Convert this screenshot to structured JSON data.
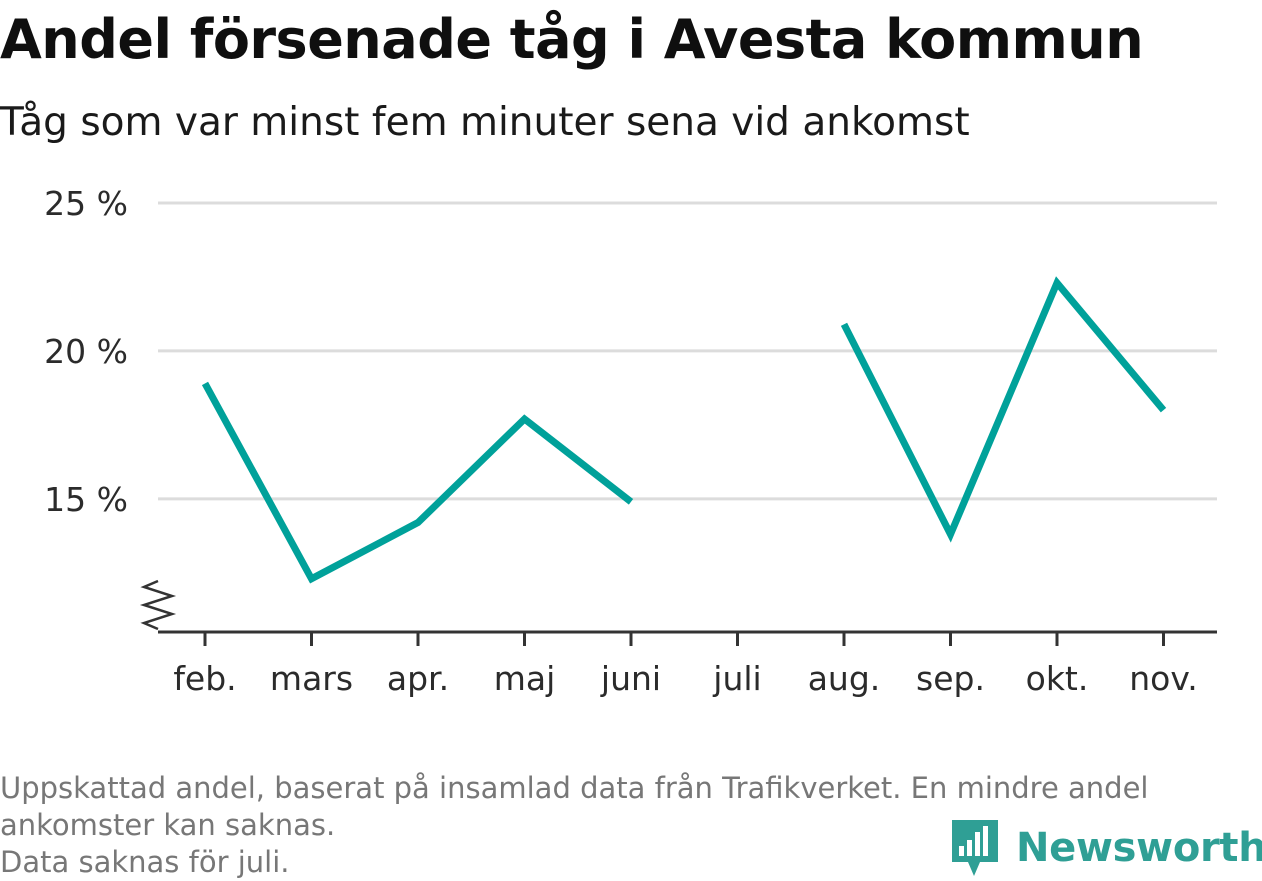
{
  "chart_data": {
    "type": "line",
    "title": "Andel försenade tåg i Avesta kommun",
    "subtitle": "Tåg som var minst fem minuter sena vid ankomst",
    "categories": [
      "feb.",
      "mars",
      "apr.",
      "maj",
      "juni",
      "juli",
      "aug.",
      "sep.",
      "okt.",
      "nov."
    ],
    "series": [
      {
        "values": [
          18.9,
          12.3,
          14.2,
          17.7,
          14.9,
          null,
          20.9,
          13.8,
          22.3,
          18.0
        ]
      }
    ],
    "y_ticks": [
      15,
      20,
      25
    ],
    "y_tick_labels": [
      "15 %",
      "20 %",
      "25 %"
    ],
    "ylim": [
      10.5,
      25
    ],
    "y_axis_break": true,
    "grid": true,
    "line_color": "#00a19a"
  },
  "footnote": {
    "line1": "Uppskattad andel, baserat på insamlad data från Trafikverket. En mindre andel",
    "line2": "ankomster kan saknas.",
    "line3": "Data saknas för juli."
  },
  "brand": {
    "name": "Newsworthy",
    "icon": "bar-chart-icon",
    "color": "#2f9f95"
  }
}
